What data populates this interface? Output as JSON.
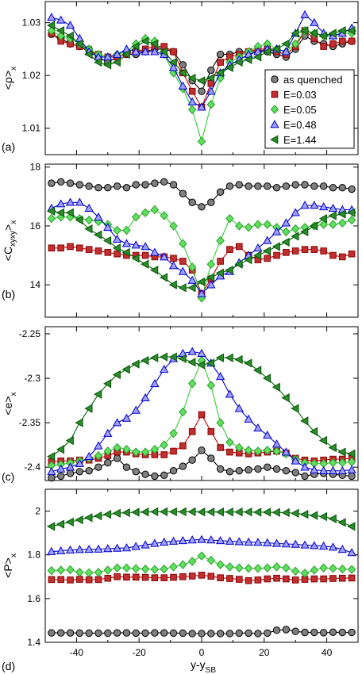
{
  "styles": [
    {
      "key": "as_quenched",
      "fill": "#808080",
      "stroke": "#000000",
      "line": "#000000",
      "marker": "circle"
    },
    {
      "key": "E003",
      "fill": "#c03030",
      "stroke": "#8b0000",
      "line": "#cc0000",
      "marker": "square"
    },
    {
      "key": "E005",
      "fill": "#5fe05f",
      "stroke": "#2e9e2e",
      "line": "#33cc33",
      "marker": "diamond"
    },
    {
      "key": "E048",
      "fill": "#a0a0ff",
      "stroke": "#0000cc",
      "line": "#0000cc",
      "marker": "triangle-up"
    },
    {
      "key": "E144",
      "fill": "#2e8b2e",
      "stroke": "#005500",
      "line": "#006600",
      "marker": "triangle-left"
    }
  ],
  "chart_data": [
    {
      "type": "line",
      "panel_label": "(a)",
      "ylabel_main": "<ρ>",
      "ylabel_sub": "x",
      "xlim": [
        -50,
        50
      ],
      "ylim": [
        1.005,
        1.034
      ],
      "yticks": [
        1.01,
        1.02,
        1.03
      ],
      "yticklabels": [
        "1.01",
        "1.02",
        "1.03"
      ],
      "x": [
        -48,
        -45,
        -42,
        -39,
        -36,
        -33,
        -30,
        -27,
        -24,
        -21,
        -18,
        -15,
        -12,
        -9,
        -6,
        -3,
        0,
        3,
        6,
        9,
        12,
        15,
        18,
        21,
        24,
        27,
        30,
        33,
        36,
        39,
        42,
        45,
        48
      ],
      "legend": {
        "position": "right",
        "entries": [
          "as quenched",
          "E=0.03",
          "E=0.05",
          "E=0.48",
          "E=1.44"
        ]
      },
      "series": [
        {
          "name": "as quenched",
          "values": [
            1.0278,
            1.027,
            1.026,
            1.0255,
            1.025,
            1.0235,
            1.0225,
            1.0235,
            1.024,
            1.024,
            1.0245,
            1.025,
            1.025,
            1.0245,
            1.022,
            1.019,
            1.017,
            1.021,
            1.024,
            1.024,
            1.0245,
            1.0245,
            1.0245,
            1.0245,
            1.024,
            1.0235,
            1.025,
            1.0275,
            1.0265,
            1.026,
            1.0255,
            1.026,
            1.0265
          ]
        },
        {
          "name": "E=0.03",
          "values": [
            1.028,
            1.0265,
            1.026,
            1.0255,
            1.0245,
            1.024,
            1.0235,
            1.0235,
            1.024,
            1.0245,
            1.025,
            1.0255,
            1.0255,
            1.0245,
            1.0205,
            1.017,
            1.014,
            1.0185,
            1.0225,
            1.0235,
            1.024,
            1.0245,
            1.025,
            1.025,
            1.0245,
            1.024,
            1.0255,
            1.0285,
            1.027,
            1.0255,
            1.026,
            1.0265,
            1.0265
          ]
        },
        {
          "name": "E=0.05",
          "values": [
            1.0285,
            1.0275,
            1.027,
            1.026,
            1.025,
            1.024,
            1.0235,
            1.024,
            1.0245,
            1.026,
            1.027,
            1.0265,
            1.024,
            1.0205,
            1.0175,
            1.0135,
            1.0075,
            1.0145,
            1.0195,
            1.0225,
            1.0235,
            1.0245,
            1.0255,
            1.026,
            1.025,
            1.0245,
            1.026,
            1.0285,
            1.028,
            1.0275,
            1.0275,
            1.028,
            1.028
          ]
        },
        {
          "name": "E=0.48",
          "values": [
            1.031,
            1.0305,
            1.0295,
            1.027,
            1.0245,
            1.0235,
            1.0235,
            1.024,
            1.025,
            1.0245,
            1.0245,
            1.0245,
            1.024,
            1.0215,
            1.018,
            1.015,
            1.014,
            1.017,
            1.0205,
            1.022,
            1.023,
            1.024,
            1.0245,
            1.025,
            1.025,
            1.0245,
            1.028,
            1.0315,
            1.03,
            1.028,
            1.0275,
            1.028,
            1.029
          ]
        },
        {
          "name": "E=1.44",
          "values": [
            1.0295,
            1.0285,
            1.0275,
            1.026,
            1.024,
            1.0225,
            1.022,
            1.0225,
            1.024,
            1.0255,
            1.0265,
            1.026,
            1.0245,
            1.0225,
            1.0205,
            1.0195,
            1.019,
            1.0195,
            1.0205,
            1.0215,
            1.0225,
            1.023,
            1.0235,
            1.0245,
            1.025,
            1.026,
            1.028,
            1.0285,
            1.028,
            1.0275,
            1.028,
            1.0285,
            1.0285
          ]
        }
      ]
    },
    {
      "type": "line",
      "panel_label": "(b)",
      "ylabel_main": "<C",
      "ylabel_mid": "xyxy",
      "ylabel_end": ">",
      "ylabel_sub": "x",
      "xlim": [
        -50,
        50
      ],
      "ylim": [
        12.9,
        18.1
      ],
      "yticks": [
        14,
        16,
        18
      ],
      "yticklabels": [
        "14",
        "16",
        "18"
      ],
      "x": [
        -48,
        -45,
        -42,
        -39,
        -36,
        -33,
        -30,
        -27,
        -24,
        -21,
        -18,
        -15,
        -12,
        -9,
        -6,
        -3,
        0,
        3,
        6,
        9,
        12,
        15,
        18,
        21,
        24,
        27,
        30,
        33,
        36,
        39,
        42,
        45,
        48
      ],
      "series": [
        {
          "name": "as quenched",
          "values": [
            17.45,
            17.5,
            17.45,
            17.4,
            17.35,
            17.3,
            17.3,
            17.35,
            17.3,
            17.4,
            17.4,
            17.45,
            17.5,
            17.4,
            17.1,
            16.8,
            16.65,
            16.8,
            17.15,
            17.35,
            17.4,
            17.35,
            17.35,
            17.35,
            17.3,
            17.35,
            17.4,
            17.4,
            17.35,
            17.35,
            17.3,
            17.3,
            17.25
          ]
        },
        {
          "name": "E=0.03",
          "values": [
            15.25,
            15.25,
            15.3,
            15.25,
            15.2,
            15.15,
            15.1,
            15.05,
            15.0,
            15.0,
            15.0,
            14.95,
            14.95,
            14.9,
            14.8,
            14.5,
            13.7,
            14.2,
            14.8,
            15.2,
            15.3,
            15.0,
            14.85,
            14.9,
            15.0,
            15.1,
            15.15,
            15.2,
            15.2,
            15.15,
            15.0,
            14.95,
            15.05
          ]
        },
        {
          "name": "E=0.05",
          "values": [
            16.25,
            16.3,
            16.3,
            16.25,
            16.2,
            16.15,
            16.05,
            15.85,
            15.85,
            16.3,
            16.45,
            16.55,
            16.35,
            16.0,
            15.4,
            14.6,
            13.55,
            14.7,
            15.5,
            16.25,
            16.0,
            15.95,
            16.05,
            16.05,
            15.95,
            15.8,
            15.9,
            15.95,
            16.0,
            16.05,
            16.05,
            16.1,
            16.2
          ]
        },
        {
          "name": "E=0.48",
          "values": [
            16.6,
            16.75,
            16.8,
            16.8,
            16.6,
            16.3,
            15.95,
            15.55,
            15.4,
            15.35,
            15.3,
            15.1,
            14.95,
            14.65,
            14.45,
            14.15,
            13.7,
            14.0,
            14.3,
            14.45,
            14.75,
            15.0,
            15.25,
            15.5,
            15.8,
            16.1,
            16.45,
            16.7,
            16.7,
            16.65,
            16.6,
            16.55,
            16.55
          ]
        },
        {
          "name": "E=1.44",
          "values": [
            16.5,
            16.45,
            16.45,
            16.2,
            15.9,
            15.7,
            15.5,
            15.25,
            15.1,
            14.9,
            14.7,
            14.5,
            14.25,
            14.0,
            13.9,
            13.9,
            14.1,
            14.25,
            14.4,
            14.5,
            14.7,
            14.85,
            15.0,
            15.15,
            15.3,
            15.45,
            15.65,
            15.8,
            16.0,
            16.25,
            16.35,
            16.4,
            16.45
          ]
        }
      ]
    },
    {
      "type": "line",
      "panel_label": "(c)",
      "ylabel_main": "<e>",
      "ylabel_sub": "x",
      "xlim": [
        -50,
        50
      ],
      "ylim": [
        -2.415,
        -2.242
      ],
      "yticks": [
        -2.4,
        -2.35,
        -2.3,
        -2.25
      ],
      "yticklabels": [
        "-2.4",
        "-2.35",
        "-2.3",
        "-2.25"
      ],
      "x": [
        -48,
        -45,
        -42,
        -39,
        -36,
        -33,
        -30,
        -27,
        -24,
        -21,
        -18,
        -15,
        -12,
        -9,
        -6,
        -3,
        0,
        3,
        6,
        9,
        12,
        15,
        18,
        21,
        24,
        27,
        30,
        33,
        36,
        39,
        42,
        45,
        48
      ],
      "series": [
        {
          "name": "as quenched",
          "values": [
            -2.412,
            -2.41,
            -2.407,
            -2.405,
            -2.404,
            -2.4,
            -2.395,
            -2.39,
            -2.4,
            -2.405,
            -2.408,
            -2.41,
            -2.409,
            -2.404,
            -2.399,
            -2.392,
            -2.381,
            -2.39,
            -2.402,
            -2.405,
            -2.404,
            -2.403,
            -2.402,
            -2.4,
            -2.402,
            -2.404,
            -2.406,
            -2.41,
            -2.408,
            -2.407,
            -2.408,
            -2.409,
            -2.41
          ]
        },
        {
          "name": "E=0.03",
          "values": [
            -2.394,
            -2.393,
            -2.393,
            -2.392,
            -2.392,
            -2.39,
            -2.387,
            -2.383,
            -2.383,
            -2.385,
            -2.386,
            -2.386,
            -2.386,
            -2.382,
            -2.376,
            -2.36,
            -2.341,
            -2.36,
            -2.378,
            -2.383,
            -2.384,
            -2.385,
            -2.384,
            -2.383,
            -2.382,
            -2.384,
            -2.39,
            -2.392,
            -2.393,
            -2.392,
            -2.391,
            -2.391,
            -2.39
          ]
        },
        {
          "name": "E=0.05",
          "values": [
            -2.398,
            -2.397,
            -2.395,
            -2.393,
            -2.39,
            -2.387,
            -2.382,
            -2.378,
            -2.38,
            -2.383,
            -2.383,
            -2.38,
            -2.375,
            -2.362,
            -2.338,
            -2.306,
            -2.28,
            -2.308,
            -2.35,
            -2.372,
            -2.378,
            -2.381,
            -2.382,
            -2.381,
            -2.382,
            -2.385,
            -2.391,
            -2.395,
            -2.396,
            -2.396,
            -2.395,
            -2.395,
            -2.394
          ]
        },
        {
          "name": "E=0.48",
          "values": [
            -2.405,
            -2.402,
            -2.4,
            -2.396,
            -2.388,
            -2.376,
            -2.362,
            -2.35,
            -2.345,
            -2.336,
            -2.322,
            -2.306,
            -2.29,
            -2.278,
            -2.272,
            -2.27,
            -2.272,
            -2.283,
            -2.298,
            -2.318,
            -2.334,
            -2.346,
            -2.356,
            -2.364,
            -2.374,
            -2.383,
            -2.393,
            -2.4,
            -2.403,
            -2.404,
            -2.404,
            -2.404,
            -2.403
          ]
        },
        {
          "name": "E=1.44",
          "values": [
            -2.388,
            -2.38,
            -2.37,
            -2.35,
            -2.334,
            -2.318,
            -2.306,
            -2.296,
            -2.29,
            -2.284,
            -2.28,
            -2.277,
            -2.276,
            -2.276,
            -2.278,
            -2.282,
            -2.285,
            -2.283,
            -2.277,
            -2.277,
            -2.279,
            -2.283,
            -2.291,
            -2.3,
            -2.31,
            -2.322,
            -2.334,
            -2.348,
            -2.36,
            -2.37,
            -2.378,
            -2.383,
            -2.385
          ]
        }
      ]
    },
    {
      "type": "line",
      "panel_label": "(d)",
      "ylabel_main": "<P>",
      "ylabel_sub": "x",
      "xlabel_main": "y-y",
      "xlabel_sub": "SB",
      "xlim": [
        -50,
        50
      ],
      "ylim": [
        1.4,
        2.1
      ],
      "yticks": [
        1.4,
        1.6,
        1.8,
        2.0
      ],
      "yticklabels": [
        "1.4",
        "1.6",
        "1.8",
        "2"
      ],
      "xticks": [
        -40,
        -20,
        0,
        20,
        40
      ],
      "xticklabels": [
        "-40",
        "-20",
        "0",
        "20",
        "40"
      ],
      "x": [
        -48,
        -45,
        -42,
        -39,
        -36,
        -33,
        -30,
        -27,
        -24,
        -21,
        -18,
        -15,
        -12,
        -9,
        -6,
        -3,
        0,
        3,
        6,
        9,
        12,
        15,
        18,
        21,
        24,
        27,
        30,
        33,
        36,
        39,
        42,
        45,
        48
      ],
      "series": [
        {
          "name": "as quenched",
          "values": [
            1.443,
            1.443,
            1.443,
            1.442,
            1.442,
            1.442,
            1.442,
            1.443,
            1.443,
            1.442,
            1.442,
            1.443,
            1.443,
            1.442,
            1.442,
            1.44,
            1.44,
            1.44,
            1.44,
            1.44,
            1.442,
            1.442,
            1.44,
            1.442,
            1.455,
            1.458,
            1.45,
            1.445,
            1.445,
            1.444,
            1.446,
            1.445,
            1.445
          ]
        },
        {
          "name": "E=0.03",
          "values": [
            1.687,
            1.687,
            1.685,
            1.688,
            1.686,
            1.687,
            1.693,
            1.7,
            1.698,
            1.698,
            1.697,
            1.695,
            1.695,
            1.697,
            1.7,
            1.703,
            1.707,
            1.702,
            1.695,
            1.692,
            1.688,
            1.682,
            1.685,
            1.69,
            1.693,
            1.69,
            1.685,
            1.688,
            1.69,
            1.69,
            1.692,
            1.693,
            1.694
          ]
        },
        {
          "name": "E=0.05",
          "values": [
            1.728,
            1.73,
            1.732,
            1.72,
            1.718,
            1.72,
            1.73,
            1.74,
            1.74,
            1.737,
            1.735,
            1.733,
            1.735,
            1.745,
            1.755,
            1.77,
            1.795,
            1.775,
            1.755,
            1.745,
            1.74,
            1.738,
            1.738,
            1.74,
            1.745,
            1.74,
            1.725,
            1.716,
            1.73,
            1.74,
            1.738,
            1.735,
            1.733
          ]
        },
        {
          "name": "E=0.48",
          "values": [
            1.815,
            1.818,
            1.822,
            1.824,
            1.825,
            1.826,
            1.828,
            1.83,
            1.832,
            1.838,
            1.845,
            1.852,
            1.858,
            1.862,
            1.865,
            1.868,
            1.87,
            1.868,
            1.865,
            1.862,
            1.86,
            1.858,
            1.857,
            1.855,
            1.852,
            1.85,
            1.848,
            1.845,
            1.842,
            1.84,
            1.835,
            1.825,
            1.81
          ]
        },
        {
          "name": "E=1.44",
          "values": [
            1.93,
            1.94,
            1.95,
            1.96,
            1.97,
            1.978,
            1.985,
            1.99,
            1.993,
            1.995,
            1.996,
            1.997,
            1.997,
            1.997,
            1.997,
            1.997,
            1.996,
            1.996,
            1.996,
            1.996,
            1.996,
            1.996,
            1.995,
            1.995,
            1.994,
            1.993,
            1.99,
            1.985,
            1.98,
            1.975,
            1.965,
            1.948,
            1.93
          ]
        }
      ]
    }
  ]
}
